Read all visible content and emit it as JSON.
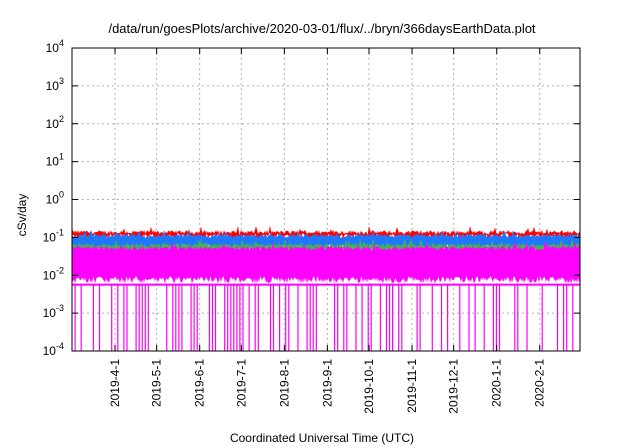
{
  "chart_data": {
    "type": "area",
    "title": "/data/run/goesPlots/archive/2020-03-01/flux/../bryn/366daysEarthData.plot",
    "xlabel": "Coordinated Universal Time (UTC)",
    "ylabel": "cSv/day",
    "x_range": [
      "2019-03-01",
      "2020-03-01"
    ],
    "yscale": "log",
    "ylim": [
      0.0001,
      10000
    ],
    "grid": true,
    "y_ticks": [
      {
        "base": "10",
        "exp": "-4",
        "value": 0.0001
      },
      {
        "base": "10",
        "exp": "-3",
        "value": 0.001
      },
      {
        "base": "10",
        "exp": "-2",
        "value": 0.01
      },
      {
        "base": "10",
        "exp": "-1",
        "value": 0.1
      },
      {
        "base": "10",
        "exp": "0",
        "value": 1
      },
      {
        "base": "10",
        "exp": "1",
        "value": 10
      },
      {
        "base": "10",
        "exp": "2",
        "value": 100
      },
      {
        "base": "10",
        "exp": "3",
        "value": 1000
      },
      {
        "base": "10",
        "exp": "4",
        "value": 10000
      }
    ],
    "x_ticks": [
      "2019-4-1",
      "2019-5-1",
      "2019-6-1",
      "2019-7-1",
      "2019-8-1",
      "2019-9-1",
      "2019-10-1",
      "2019-11-1",
      "2019-12-1",
      "2020-1-1",
      "2020-2-1"
    ],
    "series": [
      {
        "color": "#ff0000",
        "typical_max": 0.13,
        "typical_min": 0.11
      },
      {
        "color": "#1e78ff",
        "typical_max": 0.105,
        "typical_min": 0.055
      },
      {
        "color": "#4caf50",
        "typical_max": 0.06,
        "typical_min": 0.045
      },
      {
        "color": "#ff00ff",
        "typical_max": 0.05,
        "typical_min": 0.008,
        "dropouts_to": 0.0001
      }
    ]
  }
}
